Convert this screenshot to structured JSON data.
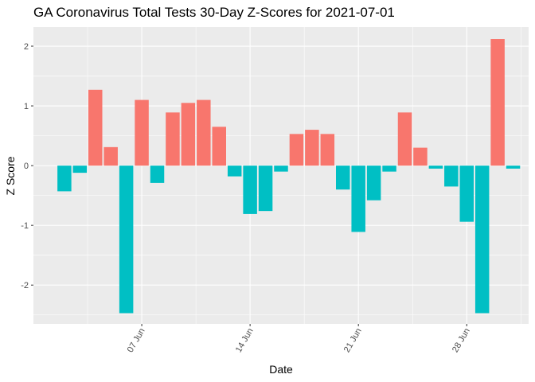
{
  "chart_data": {
    "type": "bar",
    "title": "GA Coronavirus Total Tests 30-Day Z-Scores for 2021-07-01",
    "xlabel": "Date",
    "ylabel": "Z Score",
    "x_tick_labels": [
      {
        "label": "07 Jun",
        "date": "2021-06-07"
      },
      {
        "label": "14 Jun",
        "date": "2021-06-14"
      },
      {
        "label": "21 Jun",
        "date": "2021-06-21"
      },
      {
        "label": "28 Jun",
        "date": "2021-06-28"
      }
    ],
    "y_ticks": [
      -2,
      -1,
      0,
      1,
      2
    ],
    "xlim": [
      "2021-05-31",
      "2021-07-02"
    ],
    "ylim": [
      -2.65,
      2.32
    ],
    "grid": true,
    "colors": {
      "positive": "#F8766D",
      "negative": "#00BFC4",
      "panel": "#EBEBEB",
      "grid": "#FFFFFF"
    },
    "dates": [
      "2021-06-02",
      "2021-06-03",
      "2021-06-04",
      "2021-06-05",
      "2021-06-06",
      "2021-06-07",
      "2021-06-08",
      "2021-06-09",
      "2021-06-10",
      "2021-06-11",
      "2021-06-12",
      "2021-06-13",
      "2021-06-14",
      "2021-06-15",
      "2021-06-16",
      "2021-06-17",
      "2021-06-18",
      "2021-06-19",
      "2021-06-20",
      "2021-06-21",
      "2021-06-22",
      "2021-06-23",
      "2021-06-24",
      "2021-06-25",
      "2021-06-26",
      "2021-06-27",
      "2021-06-28",
      "2021-06-29",
      "2021-06-30",
      "2021-07-01"
    ],
    "values": [
      -0.43,
      -0.12,
      1.27,
      0.31,
      -2.47,
      1.1,
      -0.29,
      0.89,
      1.05,
      1.1,
      0.65,
      -0.18,
      -0.81,
      -0.76,
      -0.1,
      0.53,
      0.6,
      0.53,
      -0.4,
      -1.11,
      -0.58,
      -0.1,
      0.89,
      0.3,
      -0.05,
      -0.35,
      -0.94,
      -2.47,
      2.12,
      -0.05
    ]
  }
}
